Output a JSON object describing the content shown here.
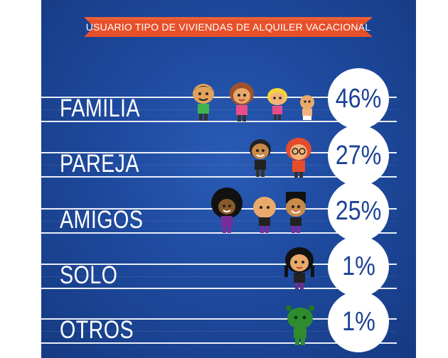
{
  "banner": {
    "title": "USUARIO TIPO DE VIVIENDAS DE ALQUILER VACACIONAL"
  },
  "rows": [
    {
      "label": "FAMILIA",
      "percent": "46%"
    },
    {
      "label": "PAREJA",
      "percent": "27%"
    },
    {
      "label": "AMIGOS",
      "percent": "25%"
    },
    {
      "label": "SOLO",
      "percent": "1%"
    },
    {
      "label": "OTROS",
      "percent": "1%"
    }
  ],
  "colors": {
    "panel": "#1e4a9e",
    "banner": "#e8502a",
    "circle_text": "#1c4196"
  },
  "icons": [
    "family-icons",
    "couple-icons",
    "friends-icons",
    "single-person-icon",
    "alien-icon"
  ]
}
